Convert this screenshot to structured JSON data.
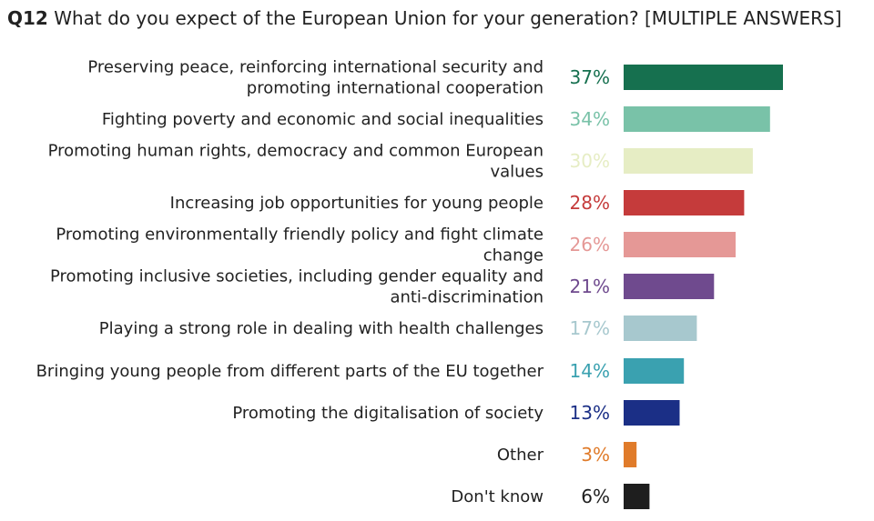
{
  "chart_data": {
    "type": "bar",
    "orientation": "horizontal",
    "question_number": "Q12",
    "title": "What do you expect of the European Union for your generation? [MULTIPLE ANSWERS]",
    "value_suffix": "%",
    "xlim": [
      0,
      40
    ],
    "grid": false,
    "categories": [
      [
        "Preserving peace, reinforcing international security and",
        "promoting international cooperation"
      ],
      [
        "Fighting poverty and economic and social inequalities"
      ],
      [
        "Promoting human rights, democracy and common European",
        "values"
      ],
      [
        "Increasing job opportunities for young people"
      ],
      [
        "Promoting environmentally friendly policy and fight climate",
        "change"
      ],
      [
        "Promoting inclusive societies, including gender equality and",
        "anti-discrimination"
      ],
      [
        "Playing a strong role in dealing with health challenges"
      ],
      [
        "Bringing young people from different parts of the EU together"
      ],
      [
        "Promoting the digitalisation of society"
      ],
      [
        "Other"
      ],
      [
        "Don't know"
      ]
    ],
    "values": [
      37,
      34,
      30,
      28,
      26,
      21,
      17,
      14,
      13,
      3,
      6
    ],
    "colors": [
      "#16704f",
      "#79c2a8",
      "#e6edc4",
      "#c53b3b",
      "#e59896",
      "#6f4a8e",
      "#a7c8ce",
      "#3aa1b0",
      "#1b2f86",
      "#e07b2a",
      "#1e1e1e"
    ]
  }
}
